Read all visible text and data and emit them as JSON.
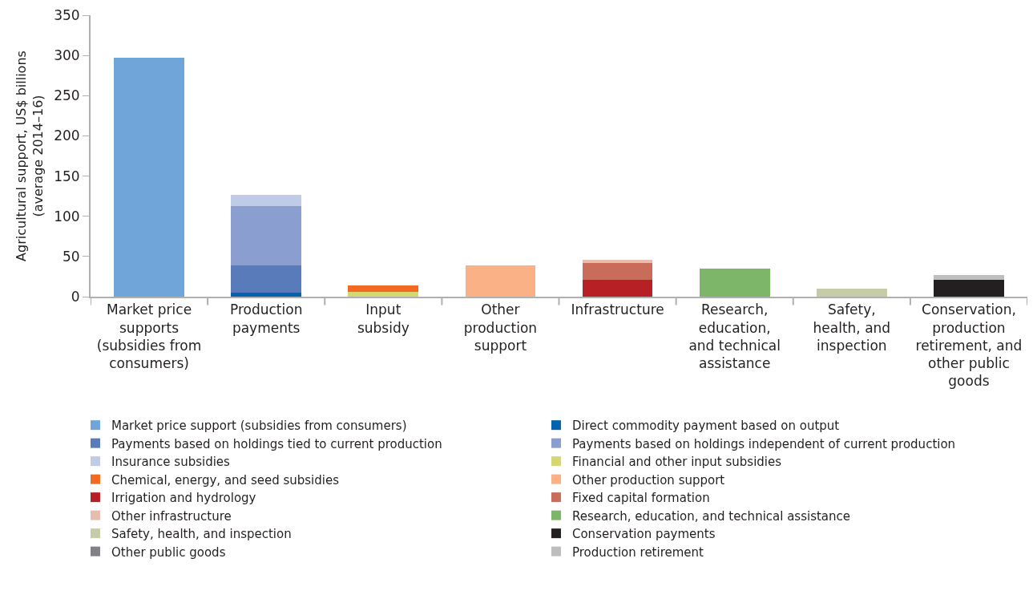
{
  "chart_data": {
    "type": "bar",
    "stacked": true,
    "ylabel": "Agricultural support, US$ billions\n(average 2014–16)",
    "categories": [
      "Market price\nsupports\n(subsidies from\nconsumers)",
      "Production\npayments",
      "Input\nsubsidy",
      "Other\nproduction\nsupport",
      "Infrastructure",
      "Research,\neducation,\nand technical\nassistance",
      "Safety,\nhealth, and\ninspection",
      "Conservation,\nproduction\nretirement, and\nother public\ngoods"
    ],
    "ylim": [
      0,
      350
    ],
    "yticks": [
      0,
      50,
      100,
      150,
      200,
      250,
      300,
      350
    ],
    "grid": false,
    "legend": "bottom",
    "series": [
      {
        "name": "Market price support (subsidies from consumers)",
        "color": "#6fa5d8",
        "values": [
          297,
          null,
          null,
          null,
          null,
          null,
          null,
          null
        ]
      },
      {
        "name": "Direct commodity payment based on output",
        "color": "#0563ad",
        "values": [
          null,
          5,
          null,
          null,
          null,
          null,
          null,
          null
        ]
      },
      {
        "name": "Payments based on holdings tied to current production",
        "color": "#5a7bba",
        "values": [
          null,
          34,
          null,
          null,
          null,
          null,
          null,
          null
        ]
      },
      {
        "name": "Payments based on holdings independent of current production",
        "color": "#8a9ecf",
        "values": [
          null,
          74,
          null,
          null,
          null,
          null,
          null,
          null
        ]
      },
      {
        "name": "Insurance subsidies",
        "color": "#c0cbe7",
        "values": [
          null,
          14,
          null,
          null,
          null,
          null,
          null,
          null
        ]
      },
      {
        "name": "Financial and other input subsidies",
        "color": "#d5d870",
        "values": [
          null,
          null,
          6,
          null,
          null,
          null,
          null,
          null
        ]
      },
      {
        "name": "Chemical, energy, and seed subsidies",
        "color": "#f26a22",
        "values": [
          null,
          null,
          8,
          null,
          null,
          null,
          null,
          null
        ]
      },
      {
        "name": "Other production support",
        "color": "#f9b185",
        "values": [
          null,
          null,
          null,
          39,
          null,
          null,
          null,
          null
        ]
      },
      {
        "name": "Irrigation and hydrology",
        "color": "#b72025",
        "values": [
          null,
          null,
          null,
          null,
          21,
          null,
          null,
          null
        ]
      },
      {
        "name": "Fixed capital formation",
        "color": "#c96d5a",
        "values": [
          null,
          null,
          null,
          null,
          21,
          null,
          null,
          null
        ]
      },
      {
        "name": "Other infrastructure",
        "color": "#e8bdae",
        "values": [
          null,
          null,
          null,
          null,
          4,
          null,
          null,
          null
        ]
      },
      {
        "name": "Research, education, and technical assistance",
        "color": "#7db668",
        "values": [
          null,
          null,
          null,
          null,
          null,
          35,
          null,
          null
        ]
      },
      {
        "name": "Safety, health, and inspection",
        "color": "#c6cba8",
        "values": [
          null,
          null,
          null,
          null,
          null,
          null,
          10,
          null
        ]
      },
      {
        "name": "Conservation payments",
        "color": "#231f20",
        "values": [
          null,
          null,
          null,
          null,
          null,
          null,
          null,
          21
        ]
      },
      {
        "name": "Other public goods",
        "color": "#808285",
        "values": [
          null,
          null,
          null,
          null,
          null,
          null,
          null,
          null
        ]
      },
      {
        "name": "Production retirement",
        "color": "#bcbec0",
        "values": [
          null,
          null,
          null,
          null,
          null,
          null,
          null,
          6
        ]
      }
    ]
  }
}
